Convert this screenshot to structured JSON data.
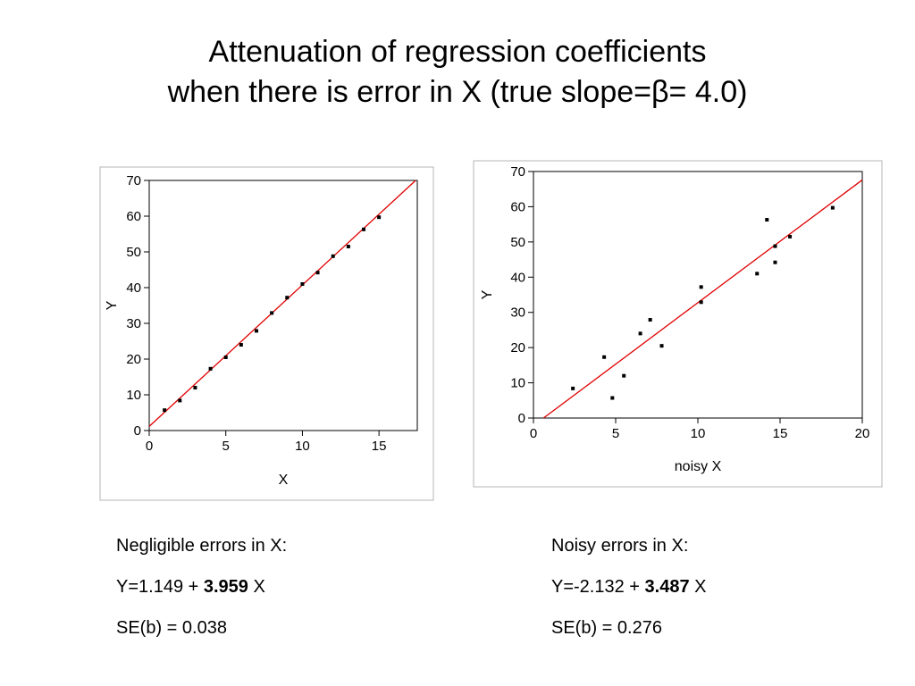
{
  "title": {
    "line1": "Attenuation of regression coefficients",
    "line2": "when there is error in X  (true slope=β= 4.0)"
  },
  "captions": [
    {
      "heading": "Negligible errors in X:",
      "eq_prefix": "Y=1.149 + ",
      "eq_slope": "3.959",
      "eq_suffix": " X",
      "se": "SE(b) = 0.038"
    },
    {
      "heading": "Noisy errors in X:",
      "eq_prefix": "Y=-2.132 + ",
      "eq_slope": "3.487",
      "eq_suffix": " X",
      "se": "SE(b) = 0.276"
    }
  ],
  "chart_data": [
    {
      "type": "scatter",
      "title": "",
      "xlabel": "X",
      "ylabel": "Y",
      "xlim": [
        0,
        17.5
      ],
      "ylim": [
        0,
        70
      ],
      "xticks": [
        0,
        5,
        10,
        15
      ],
      "yticks": [
        0,
        10,
        20,
        30,
        40,
        50,
        60,
        70
      ],
      "grid": false,
      "points_color": "#000000",
      "fit_color": "#e00000",
      "series": [
        {
          "x": [
            1,
            2,
            3,
            4,
            5,
            6,
            7,
            8,
            9,
            10,
            11,
            12,
            13,
            14,
            15
          ],
          "y": [
            5.7,
            8.4,
            12,
            17.3,
            20.5,
            24,
            27.9,
            32.9,
            37.2,
            41,
            44.2,
            48.8,
            51.5,
            56.3,
            59.7
          ]
        }
      ],
      "fit": {
        "intercept": 1.149,
        "slope": 3.959
      }
    },
    {
      "type": "scatter",
      "title": "",
      "xlabel": "noisy X",
      "ylabel": "Y",
      "xlim": [
        0,
        20
      ],
      "ylim": [
        0,
        70
      ],
      "xticks": [
        0,
        5,
        10,
        15,
        20
      ],
      "yticks": [
        0,
        10,
        20,
        30,
        40,
        50,
        60,
        70
      ],
      "grid": false,
      "points_color": "#000000",
      "fit_color": "#e00000",
      "series": [
        {
          "x": [
            2.4,
            4.3,
            4.8,
            5.5,
            6.5,
            7.1,
            7.8,
            10.2,
            10.2,
            13.6,
            14.2,
            14.7,
            14.7,
            15.6,
            18.2
          ],
          "y": [
            8.4,
            17.3,
            5.7,
            12,
            24,
            27.9,
            20.5,
            37.2,
            32.9,
            41,
            56.3,
            48.8,
            44.2,
            51.5,
            59.7
          ]
        }
      ],
      "fit": {
        "intercept": -2.132,
        "slope": 3.487
      }
    }
  ]
}
